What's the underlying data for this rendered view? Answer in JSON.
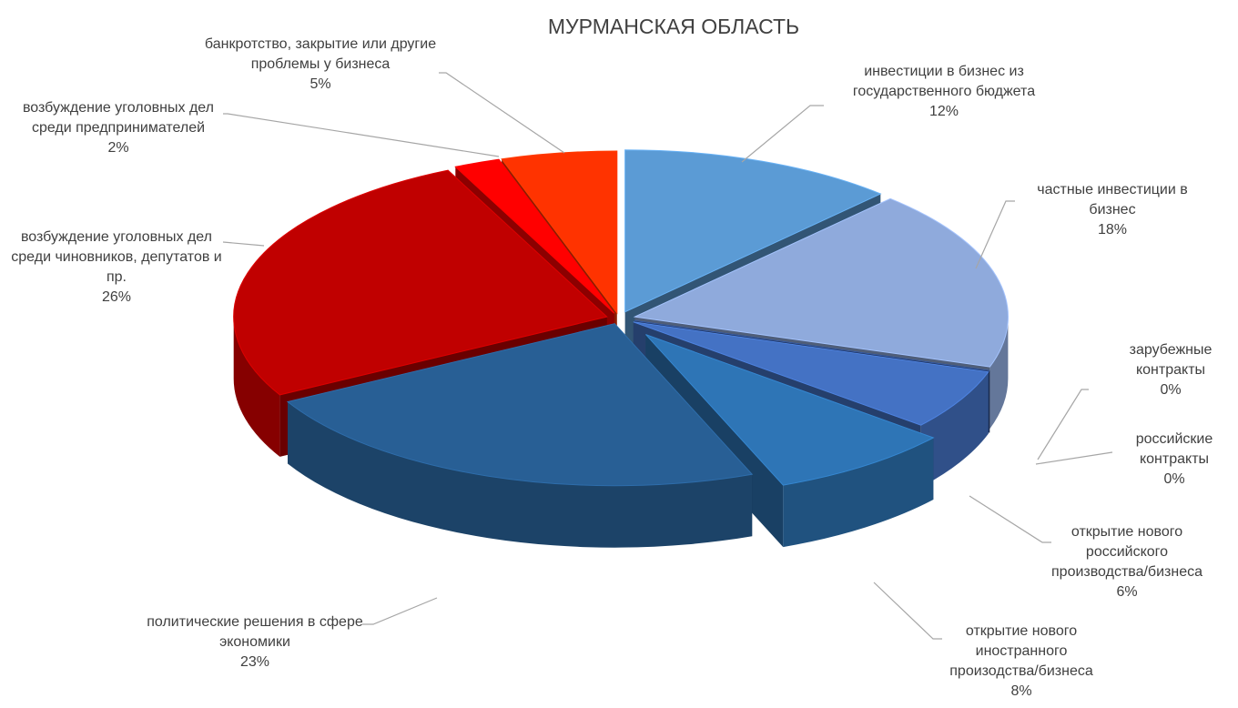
{
  "chart_data": {
    "type": "pie3d",
    "title": "МУРМАНСКАЯ ОБЛАСТЬ",
    "categories": [
      "инвестиции в бизнес из государственного бюджета",
      "частные инвестиции в бизнес",
      "зарубежные контракты",
      "российские контракты",
      "открытие нового российского производства/бизнеса",
      "открытие нового иностранного произодства/бизнеса",
      "политические решения в сфере экономики",
      "возбуждение уголовных дел среди чиновников, депутатов и пр.",
      "возбуждение уголовных дел среди предпринимателей",
      "банкротство, закрытие или другие проблемы у бизнеса"
    ],
    "values": [
      12,
      18,
      0,
      0,
      6,
      8,
      23,
      26,
      2,
      5
    ],
    "value_labels": [
      "12%",
      "18%",
      "0%",
      "0%",
      "6%",
      "8%",
      "23%",
      "26%",
      "2%",
      "5%"
    ],
    "colors": [
      "#5b9bd5",
      "#8faadc",
      "#1f3864",
      "#2f4f8f",
      "#4472c4",
      "#2e75b6",
      "#285f95",
      "#c00000",
      "#ff0000",
      "#ff3300"
    ]
  }
}
